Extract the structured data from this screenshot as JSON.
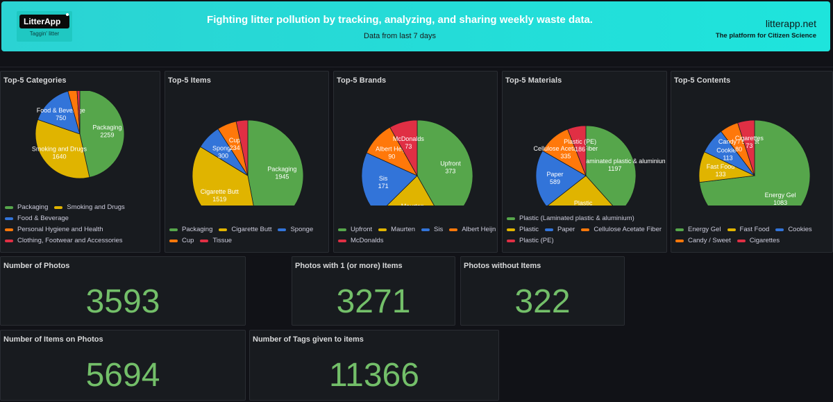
{
  "header": {
    "logo_text": "LitterApp",
    "logo_tagline": "Taggin' litter",
    "title": "Fighting litter pollution by tracking, analyzing, and sharing weekly waste data.",
    "subtitle": "Data from last 7 days",
    "site": "litterapp.net",
    "platform": "The platform for Citizen Science"
  },
  "palette": {
    "green": "#56a64b",
    "yellow": "#e0b400",
    "blue": "#3274d9",
    "orange": "#ff780a",
    "red": "#e02f44"
  },
  "chart_data": [
    {
      "type": "pie",
      "title": "Top-5 Categories",
      "labels": [
        "Packaging",
        "Smoking and Drugs",
        "Food & Beverage",
        "Personal Hygiene and Health",
        "Clothing, Footwear and Accessories"
      ],
      "values": [
        2259,
        1640,
        750,
        160,
        50
      ],
      "shown_values": [
        "2259",
        "1640",
        "750",
        "",
        ""
      ],
      "colors": [
        "#56a64b",
        "#e0b400",
        "#3274d9",
        "#ff780a",
        "#e02f44"
      ],
      "legend_rows": [
        [
          0,
          1
        ],
        [
          2
        ],
        [
          3
        ],
        [
          4
        ]
      ]
    },
    {
      "type": "pie",
      "title": "Top-5 Items",
      "labels": [
        "Packaging",
        "Cigarette Butt",
        "Sponge",
        "Cup",
        "Tissue"
      ],
      "values": [
        1945,
        1519,
        300,
        234,
        140
      ],
      "shown_values": [
        "1945",
        "1519",
        "300",
        "234",
        ""
      ],
      "colors": [
        "#56a64b",
        "#e0b400",
        "#3274d9",
        "#ff780a",
        "#e02f44"
      ],
      "legend_rows": [
        [
          0,
          1,
          2
        ],
        [
          3,
          4
        ]
      ]
    },
    {
      "type": "pie",
      "title": "Top-5 Brands",
      "labels": [
        "Upfront",
        "Maurten",
        "Sis",
        "Albert Heijn",
        "McDonalds"
      ],
      "values": [
        373,
        186,
        171,
        90,
        73
      ],
      "shown_values": [
        "373",
        "186",
        "171",
        "90",
        "73"
      ],
      "colors": [
        "#56a64b",
        "#e0b400",
        "#3274d9",
        "#ff780a",
        "#e02f44"
      ],
      "legend_rows": [
        [
          0,
          1,
          2,
          3
        ],
        [
          4
        ]
      ]
    },
    {
      "type": "pie",
      "title": "Top-5 Materials",
      "labels": [
        "Plastic (Laminated plastic & aluminium)",
        "Plastic",
        "Paper",
        "Cellulose Acetate Fiber",
        "Plastic (PE)"
      ],
      "values": [
        1197,
        812,
        589,
        335,
        186
      ],
      "shown_values": [
        "1197",
        "812",
        "589",
        "335",
        "186"
      ],
      "colors": [
        "#56a64b",
        "#e0b400",
        "#3274d9",
        "#ff780a",
        "#e02f44"
      ],
      "legend_rows": [
        [
          0
        ],
        [
          1,
          2,
          3
        ],
        [
          4
        ]
      ]
    },
    {
      "type": "pie",
      "title": "Top-5 Contents",
      "labels": [
        "Energy Gel",
        "Fast Food",
        "Cookies",
        "Candy / Sweet",
        "Cigarettes"
      ],
      "values": [
        1083,
        133,
        113,
        80,
        73
      ],
      "shown_values": [
        "1083",
        "133",
        "113",
        "80",
        "73"
      ],
      "colors": [
        "#56a64b",
        "#e0b400",
        "#3274d9",
        "#ff780a",
        "#e02f44"
      ],
      "legend_rows": [
        [
          0,
          1,
          2
        ],
        [
          3,
          4
        ]
      ]
    }
  ],
  "stats": {
    "photos": {
      "label": "Number of Photos",
      "value": "3593"
    },
    "photos_with_items": {
      "label": "Photos with 1 (or more) Items",
      "value": "3271"
    },
    "photos_without_items": {
      "label": "Photos without Items",
      "value": "322"
    },
    "items_on_photos": {
      "label": "Number of Items on Photos",
      "value": "5694"
    },
    "tags_given": {
      "label": "Number of Tags given to items",
      "value": "11366"
    }
  }
}
